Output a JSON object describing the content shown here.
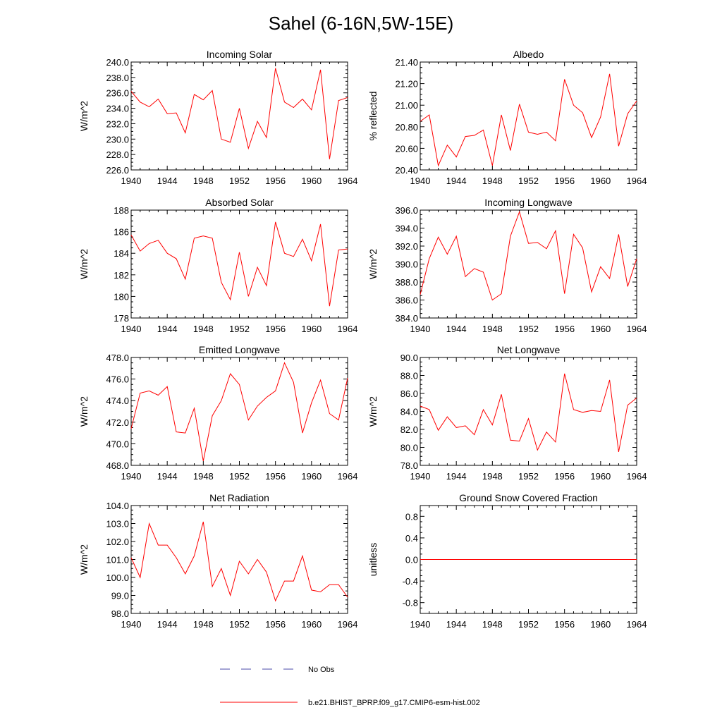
{
  "title": "Sahel (6-16N,5W-15E)",
  "colors": {
    "model_line": "#ff0000",
    "obs_line": "#4a4aa8",
    "axis": "#000000"
  },
  "legend": {
    "obs_label": "No Obs",
    "model_label": "b.e21.BHIST_BPRP.f09_g17.CMIP6-esm-hist.002"
  },
  "chart_data": [
    {
      "type": "line",
      "title": "Incoming Solar",
      "xlabel": "",
      "ylabel": "W/m^2",
      "xlim": [
        1940,
        1964
      ],
      "ylim": [
        226,
        240
      ],
      "xticks": [
        1940,
        1944,
        1948,
        1952,
        1956,
        1960,
        1964
      ],
      "xtick_labels": [
        "1940",
        "1944",
        "1948",
        "1952",
        "1956",
        "1960",
        "1964"
      ],
      "yticks": [
        226,
        228,
        230,
        232,
        234,
        236,
        238,
        240
      ],
      "ytick_labels": [
        "226.0",
        "228.0",
        "230.0",
        "232.0",
        "234.0",
        "236.0",
        "238.0",
        "240.0"
      ],
      "x": [
        1940,
        1941,
        1942,
        1943,
        1944,
        1945,
        1946,
        1947,
        1948,
        1949,
        1950,
        1951,
        1952,
        1953,
        1954,
        1955,
        1956,
        1957,
        1958,
        1959,
        1960,
        1961,
        1962,
        1963,
        1964
      ],
      "series": [
        {
          "name": "b.e21.BHIST_BPRP.f09_g17.CMIP6-esm-hist.002",
          "values": [
            236.2,
            234.8,
            234.2,
            235.2,
            233.3,
            233.4,
            230.8,
            235.8,
            235.1,
            236.3,
            230.0,
            229.6,
            234.0,
            228.8,
            232.3,
            230.2,
            239.2,
            234.8,
            234.1,
            235.2,
            233.8,
            239.0,
            227.4,
            235.0,
            235.4
          ]
        }
      ]
    },
    {
      "type": "line",
      "title": "Albedo",
      "xlabel": "",
      "ylabel": "% reflected",
      "xlim": [
        1940,
        1964
      ],
      "ylim": [
        20.4,
        21.4
      ],
      "xticks": [
        1940,
        1944,
        1948,
        1952,
        1956,
        1960,
        1964
      ],
      "xtick_labels": [
        "1940",
        "1944",
        "1948",
        "1952",
        "1956",
        "1960",
        "1964"
      ],
      "yticks": [
        20.4,
        20.6,
        20.8,
        21.0,
        21.2,
        21.4
      ],
      "ytick_labels": [
        "20.40",
        "20.60",
        "20.80",
        "21.00",
        "21.20",
        "21.40"
      ],
      "x": [
        1940,
        1941,
        1942,
        1943,
        1944,
        1945,
        1946,
        1947,
        1948,
        1949,
        1950,
        1951,
        1952,
        1953,
        1954,
        1955,
        1956,
        1957,
        1958,
        1959,
        1960,
        1961,
        1962,
        1963,
        1964
      ],
      "series": [
        {
          "name": "b.e21.BHIST_BPRP.f09_g17.CMIP6-esm-hist.002",
          "values": [
            20.85,
            20.91,
            20.44,
            20.63,
            20.52,
            20.71,
            20.72,
            20.77,
            20.44,
            20.91,
            20.58,
            21.01,
            20.75,
            20.73,
            20.75,
            20.67,
            21.24,
            21.0,
            20.93,
            20.7,
            20.89,
            21.29,
            20.62,
            20.92,
            21.04
          ]
        }
      ]
    },
    {
      "type": "line",
      "title": "Absorbed Solar",
      "xlabel": "",
      "ylabel": "W/m^2",
      "xlim": [
        1940,
        1964
      ],
      "ylim": [
        178,
        188
      ],
      "xticks": [
        1940,
        1944,
        1948,
        1952,
        1956,
        1960,
        1964
      ],
      "xtick_labels": [
        "1940",
        "1944",
        "1948",
        "1952",
        "1956",
        "1960",
        "1964"
      ],
      "yticks": [
        178,
        180,
        182,
        184,
        186,
        188
      ],
      "ytick_labels": [
        "178",
        "180",
        "182",
        "184",
        "186",
        "188"
      ],
      "x": [
        1940,
        1941,
        1942,
        1943,
        1944,
        1945,
        1946,
        1947,
        1948,
        1949,
        1950,
        1951,
        1952,
        1953,
        1954,
        1955,
        1956,
        1957,
        1958,
        1959,
        1960,
        1961,
        1962,
        1963,
        1964
      ],
      "series": [
        {
          "name": "b.e21.BHIST_BPRP.f09_g17.CMIP6-esm-hist.002",
          "values": [
            185.7,
            184.2,
            184.9,
            185.2,
            184.0,
            183.5,
            181.6,
            185.4,
            185.6,
            185.4,
            181.3,
            179.7,
            184.1,
            180.0,
            182.7,
            181.0,
            186.9,
            184.0,
            183.7,
            185.3,
            183.3,
            186.7,
            179.1,
            184.3,
            184.4
          ]
        }
      ]
    },
    {
      "type": "line",
      "title": "Incoming Longwave",
      "xlabel": "",
      "ylabel": "W/m^2",
      "xlim": [
        1940,
        1964
      ],
      "ylim": [
        384,
        396
      ],
      "xticks": [
        1940,
        1944,
        1948,
        1952,
        1956,
        1960,
        1964
      ],
      "xtick_labels": [
        "1940",
        "1944",
        "1948",
        "1952",
        "1956",
        "1960",
        "1964"
      ],
      "yticks": [
        384,
        386,
        388,
        390,
        392,
        394,
        396
      ],
      "ytick_labels": [
        "384.0",
        "386.0",
        "388.0",
        "390.0",
        "392.0",
        "394.0",
        "396.0"
      ],
      "x": [
        1940,
        1941,
        1942,
        1943,
        1944,
        1945,
        1946,
        1947,
        1948,
        1949,
        1950,
        1951,
        1952,
        1953,
        1954,
        1955,
        1956,
        1957,
        1958,
        1959,
        1960,
        1961,
        1962,
        1963,
        1964
      ],
      "series": [
        {
          "name": "b.e21.BHIST_BPRP.f09_g17.CMIP6-esm-hist.002",
          "values": [
            386.6,
            390.6,
            393.0,
            391.1,
            393.1,
            388.6,
            389.5,
            389.1,
            386.0,
            386.7,
            393.1,
            395.8,
            392.3,
            392.4,
            391.7,
            393.7,
            386.7,
            393.3,
            391.8,
            386.9,
            389.7,
            388.4,
            393.3,
            387.5,
            390.6
          ]
        }
      ]
    },
    {
      "type": "line",
      "title": "Emitted Longwave",
      "xlabel": "",
      "ylabel": "W/m^2",
      "xlim": [
        1940,
        1964
      ],
      "ylim": [
        468,
        478
      ],
      "xticks": [
        1940,
        1944,
        1948,
        1952,
        1956,
        1960,
        1964
      ],
      "xtick_labels": [
        "1940",
        "1944",
        "1948",
        "1952",
        "1956",
        "1960",
        "1964"
      ],
      "yticks": [
        468,
        470,
        472,
        474,
        476,
        478
      ],
      "ytick_labels": [
        "468.0",
        "470.0",
        "472.0",
        "474.0",
        "476.0",
        "478.0"
      ],
      "x": [
        1940,
        1941,
        1942,
        1943,
        1944,
        1945,
        1946,
        1947,
        1948,
        1949,
        1950,
        1951,
        1952,
        1953,
        1954,
        1955,
        1956,
        1957,
        1958,
        1959,
        1960,
        1961,
        1962,
        1963,
        1964
      ],
      "series": [
        {
          "name": "b.e21.BHIST_BPRP.f09_g17.CMIP6-esm-hist.002",
          "values": [
            471.4,
            474.7,
            474.9,
            474.5,
            475.3,
            471.1,
            471.0,
            473.3,
            468.4,
            472.6,
            474.0,
            476.5,
            475.5,
            472.2,
            473.5,
            474.3,
            474.9,
            477.5,
            475.7,
            471.0,
            473.8,
            475.9,
            472.8,
            472.2,
            476.1
          ]
        }
      ]
    },
    {
      "type": "line",
      "title": "Net Longwave",
      "xlabel": "",
      "ylabel": "W/m^2",
      "xlim": [
        1940,
        1964
      ],
      "ylim": [
        78,
        90
      ],
      "xticks": [
        1940,
        1944,
        1948,
        1952,
        1956,
        1960,
        1964
      ],
      "xtick_labels": [
        "1940",
        "1944",
        "1948",
        "1952",
        "1956",
        "1960",
        "1964"
      ],
      "yticks": [
        78,
        80,
        82,
        84,
        86,
        88,
        90
      ],
      "ytick_labels": [
        "78.0",
        "80.0",
        "82.0",
        "84.0",
        "86.0",
        "88.0",
        "90.0"
      ],
      "x": [
        1940,
        1941,
        1942,
        1943,
        1944,
        1945,
        1946,
        1947,
        1948,
        1949,
        1950,
        1951,
        1952,
        1953,
        1954,
        1955,
        1956,
        1957,
        1958,
        1959,
        1960,
        1961,
        1962,
        1963,
        1964
      ],
      "series": [
        {
          "name": "b.e21.BHIST_BPRP.f09_g17.CMIP6-esm-hist.002",
          "values": [
            84.6,
            84.2,
            81.9,
            83.4,
            82.2,
            82.4,
            81.4,
            84.2,
            82.5,
            85.9,
            80.8,
            80.7,
            83.2,
            79.7,
            81.7,
            80.6,
            88.2,
            84.2,
            83.9,
            84.1,
            84.0,
            87.5,
            79.5,
            84.7,
            85.5
          ]
        }
      ]
    },
    {
      "type": "line",
      "title": "Net Radiation",
      "xlabel": "",
      "ylabel": "W/m^2",
      "xlim": [
        1940,
        1964
      ],
      "ylim": [
        98,
        104
      ],
      "xticks": [
        1940,
        1944,
        1948,
        1952,
        1956,
        1960,
        1964
      ],
      "xtick_labels": [
        "1940",
        "1944",
        "1948",
        "1952",
        "1956",
        "1960",
        "1964"
      ],
      "yticks": [
        98,
        99,
        100,
        101,
        102,
        103,
        104
      ],
      "ytick_labels": [
        "98.0",
        "99.0",
        "100.0",
        "101.0",
        "102.0",
        "103.0",
        "104.0"
      ],
      "x": [
        1940,
        1941,
        1942,
        1943,
        1944,
        1945,
        1946,
        1947,
        1948,
        1949,
        1950,
        1951,
        1952,
        1953,
        1954,
        1955,
        1956,
        1957,
        1958,
        1959,
        1960,
        1961,
        1962,
        1963,
        1964
      ],
      "series": [
        {
          "name": "b.e21.BHIST_BPRP.f09_g17.CMIP6-esm-hist.002",
          "values": [
            101.1,
            100.0,
            103.0,
            101.8,
            101.8,
            101.1,
            100.2,
            101.2,
            103.1,
            99.5,
            100.5,
            99.0,
            100.9,
            100.2,
            101.0,
            100.3,
            98.7,
            99.8,
            99.8,
            101.2,
            99.3,
            99.2,
            99.6,
            99.6,
            98.9
          ]
        }
      ]
    },
    {
      "type": "line",
      "title": "Ground Snow Covered Fraction",
      "xlabel": "",
      "ylabel": "unitless",
      "xlim": [
        1940,
        1964
      ],
      "ylim": [
        -1.0,
        1.0
      ],
      "xticks": [
        1940,
        1944,
        1948,
        1952,
        1956,
        1960,
        1964
      ],
      "xtick_labels": [
        "1940",
        "1944",
        "1948",
        "1952",
        "1956",
        "1960",
        "1964"
      ],
      "yticks": [
        -0.8,
        -0.4,
        0.0,
        0.4,
        0.8
      ],
      "ytick_labels": [
        "-0.8",
        "-0.4",
        "0.0",
        "0.4",
        "0.8"
      ],
      "x": [
        1940,
        1941,
        1942,
        1943,
        1944,
        1945,
        1946,
        1947,
        1948,
        1949,
        1950,
        1951,
        1952,
        1953,
        1954,
        1955,
        1956,
        1957,
        1958,
        1959,
        1960,
        1961,
        1962,
        1963,
        1964
      ],
      "series": [
        {
          "name": "b.e21.BHIST_BPRP.f09_g17.CMIP6-esm-hist.002",
          "values": [
            0,
            0,
            0,
            0,
            0,
            0,
            0,
            0,
            0,
            0,
            0,
            0,
            0,
            0,
            0,
            0,
            0,
            0,
            0,
            0,
            0,
            0,
            0,
            0,
            0
          ]
        }
      ]
    }
  ]
}
